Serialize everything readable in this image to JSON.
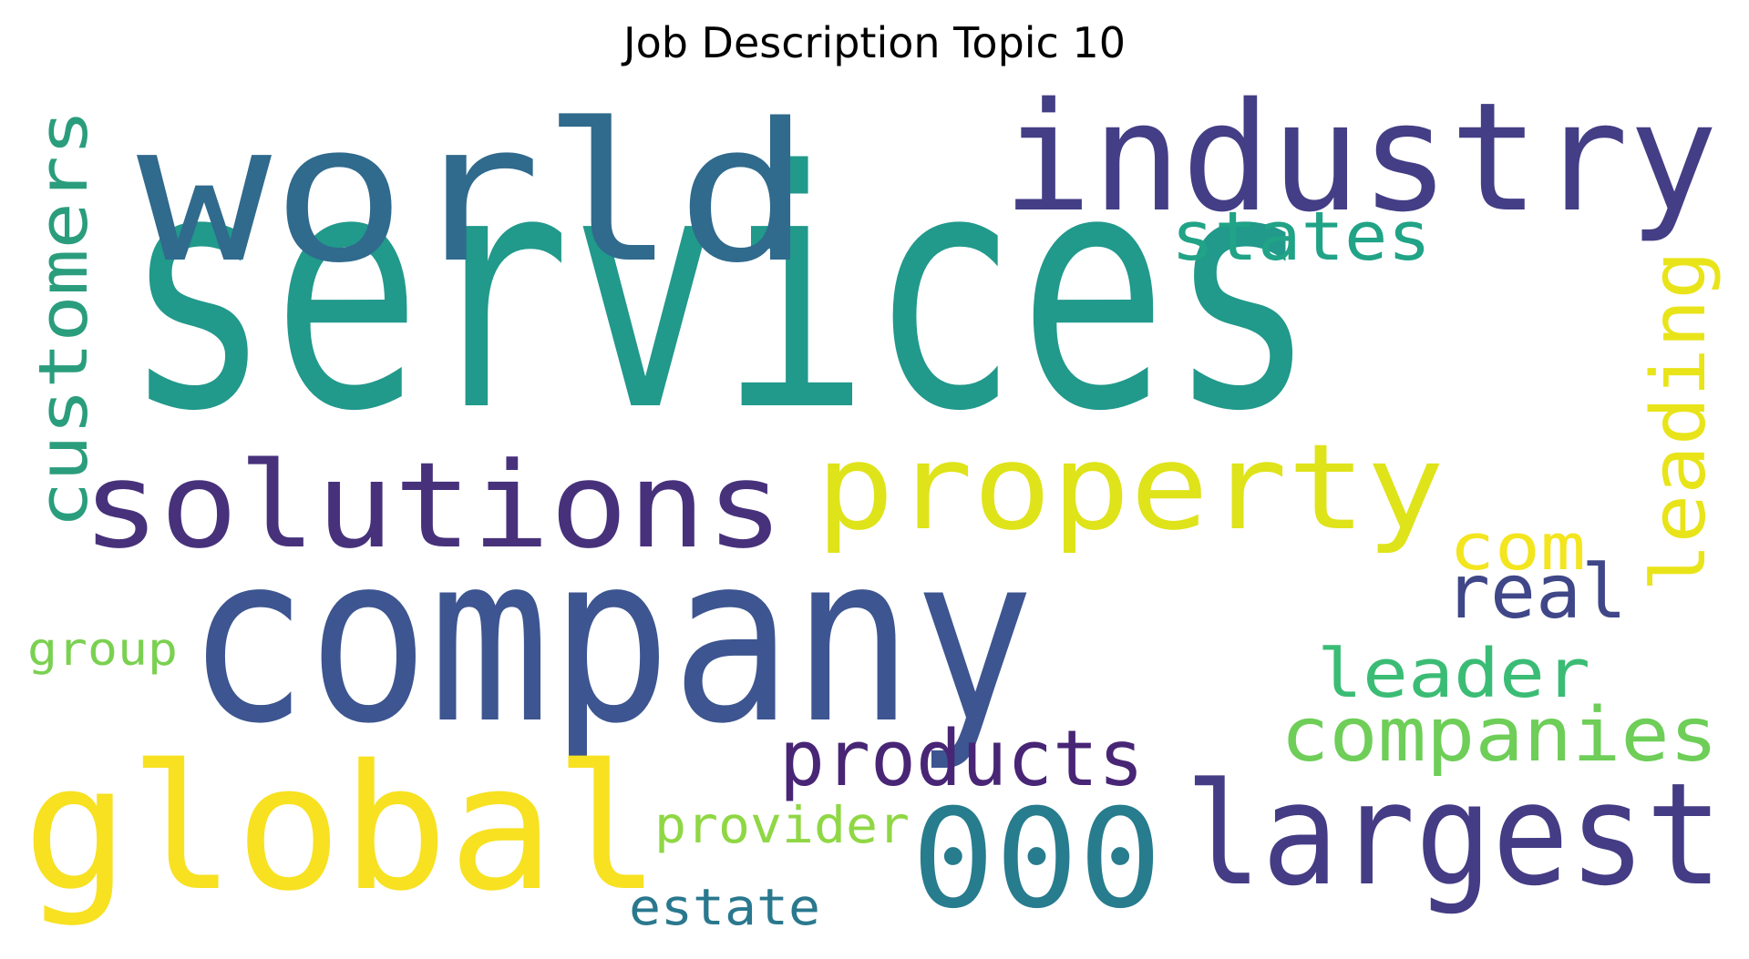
{
  "chart_data": {
    "type": "wordcloud",
    "title": "Job Description Topic 10",
    "words": [
      {
        "text": "services",
        "color": "#21998b"
      },
      {
        "text": "company",
        "color": "#3d5590"
      },
      {
        "text": "world",
        "color": "#306a8d"
      },
      {
        "text": "industry",
        "color": "#433e85"
      },
      {
        "text": "global",
        "color": "#f7e121"
      },
      {
        "text": "solutions",
        "color": "#47317b"
      },
      {
        "text": "property",
        "color": "#dfe319"
      },
      {
        "text": "largest",
        "color": "#443c84"
      },
      {
        "text": "000",
        "color": "#277c8e"
      },
      {
        "text": "customers",
        "color": "#2a9d7d"
      },
      {
        "text": "leading",
        "color": "#e8e419"
      },
      {
        "text": "states",
        "color": "#20a386"
      },
      {
        "text": "products",
        "color": "#482575"
      },
      {
        "text": "companies",
        "color": "#6ece58"
      },
      {
        "text": "leader",
        "color": "#3bbc75"
      },
      {
        "text": "real",
        "color": "#3f4788"
      },
      {
        "text": "com",
        "color": "#f3e51e"
      },
      {
        "text": "provider",
        "color": "#8fd744"
      },
      {
        "text": "estate",
        "color": "#2a788e"
      },
      {
        "text": "group",
        "color": "#7ad151"
      }
    ]
  }
}
